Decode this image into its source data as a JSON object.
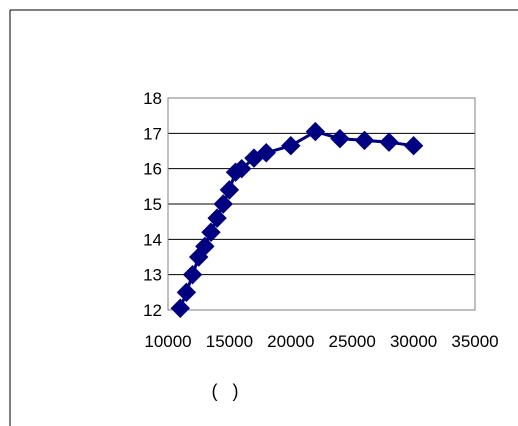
{
  "chart_data": {
    "type": "line",
    "title": "",
    "xlabel": "(   )",
    "ylabel": "",
    "xlim": [
      10000,
      35000
    ],
    "ylim": [
      12,
      18
    ],
    "x_ticks": [
      "10000",
      "15000",
      "20000",
      "25000",
      "30000",
      "35000"
    ],
    "y_ticks": [
      "12",
      "13",
      "14",
      "15",
      "16",
      "17",
      "18"
    ],
    "grid": "horizontal",
    "legend": "none",
    "colors": {
      "series": "#000080",
      "grid": "#000000",
      "plot_border": "#808080",
      "frame": "#000000"
    },
    "marker": "diamond",
    "series": [
      {
        "x": [
          11000,
          11500,
          12000,
          12500,
          13000,
          13500,
          14000,
          14500,
          15000,
          15500,
          16000,
          17000,
          18000,
          20000,
          22000,
          24000,
          26000,
          28000,
          30000
        ],
        "values": [
          12.05,
          12.5,
          13.0,
          13.5,
          13.8,
          14.2,
          14.6,
          15.0,
          15.4,
          15.9,
          16.0,
          16.3,
          16.45,
          16.65,
          17.05,
          16.85,
          16.8,
          16.75,
          16.65
        ]
      }
    ]
  }
}
